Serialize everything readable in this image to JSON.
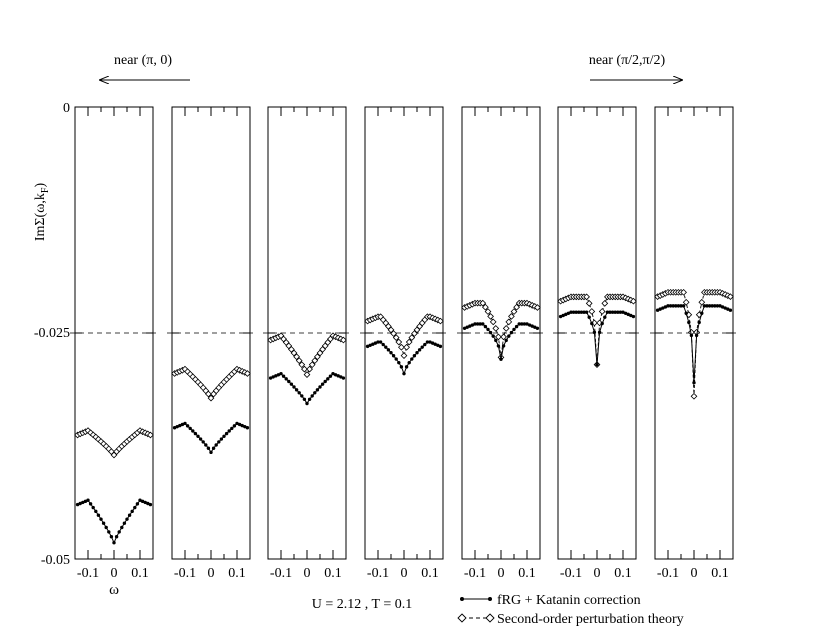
{
  "chart_data": {
    "type": "line",
    "ylabel": "ImΣ(ω,k_F)",
    "ylabel_main": "ImΣ(ω,k",
    "ylabel_sub": "F",
    "ylabel_end": ")",
    "xlabel": "ω",
    "ylim": [
      -0.05,
      0
    ],
    "xlim": [
      -0.15,
      0.15
    ],
    "ytick_labels": [
      "0",
      "-0.025",
      "-0.05"
    ],
    "yticks": [
      0,
      -0.025,
      -0.05
    ],
    "xticks": [
      -0.1,
      0,
      0.1
    ],
    "xtick_labels": [
      "-0.1",
      "0",
      "0.1"
    ],
    "reference_line": -0.025,
    "annotation_left": "near (π, 0)",
    "annotation_right": "near (π/2,π/2)",
    "parameters_text": "U = 2.12 , T = 0.1",
    "legend": [
      {
        "label": "fRG + Katanin correction",
        "marker": "dot",
        "style": "solid"
      },
      {
        "label": "Second-order perturbation theory",
        "marker": "diamond",
        "style": "dashed"
      }
    ],
    "panels": [
      {
        "frg": {
          "base": -0.0435,
          "depth": 0.0047,
          "shape": "wide"
        },
        "pt2": {
          "base": -0.0358,
          "depth": 0.0027,
          "shape": "wide"
        }
      },
      {
        "frg": {
          "base": -0.035,
          "depth": 0.0032,
          "shape": "wide"
        },
        "pt2": {
          "base": -0.029,
          "depth": 0.0032,
          "shape": "wide"
        }
      },
      {
        "frg": {
          "base": -0.0295,
          "depth": 0.0033,
          "shape": "wide"
        },
        "pt2": {
          "base": -0.0253,
          "depth": 0.0043,
          "shape": "wide"
        }
      },
      {
        "frg": {
          "base": -0.026,
          "depth": 0.0035,
          "shape": "mid"
        },
        "pt2": {
          "base": -0.0232,
          "depth": 0.0043,
          "shape": "mid"
        }
      },
      {
        "frg": {
          "base": -0.024,
          "depth": 0.0039,
          "shape": "narrow"
        },
        "pt2": {
          "base": -0.0217,
          "depth": 0.006,
          "shape": "narrow"
        }
      },
      {
        "frg": {
          "base": -0.0227,
          "depth": 0.0058,
          "shape": "sharp"
        },
        "pt2": {
          "base": -0.021,
          "depth": 0.0075,
          "shape": "sharp"
        }
      },
      {
        "frg": {
          "base": -0.022,
          "depth": 0.0085,
          "shape": "sharp"
        },
        "pt2": {
          "base": -0.0205,
          "depth": 0.0115,
          "shape": "sharp"
        }
      }
    ]
  }
}
